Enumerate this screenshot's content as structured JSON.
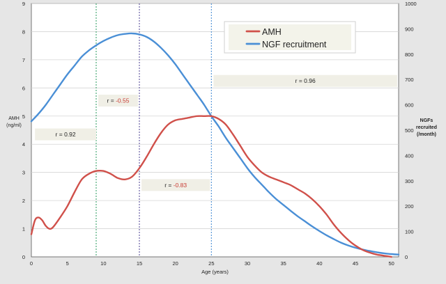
{
  "chart_data": {
    "type": "line",
    "xlabel": "Age (years)",
    "x_ticks": [
      0,
      5,
      10,
      15,
      20,
      25,
      30,
      35,
      40,
      45,
      50
    ],
    "xlim": [
      0,
      51
    ],
    "y_left": {
      "label_lines": [
        "AMH",
        "(ng/ml)"
      ],
      "lim": [
        0,
        9
      ],
      "ticks": [
        0,
        1,
        2,
        3,
        4,
        5,
        6,
        7,
        8,
        9
      ]
    },
    "y_right": {
      "label_lines": [
        "NGFs",
        "recruited",
        "(/month)"
      ],
      "lim": [
        0,
        1000
      ],
      "ticks": [
        0,
        100,
        200,
        300,
        400,
        500,
        600,
        700,
        800,
        900,
        1000
      ]
    },
    "grid": "horizontal",
    "legend": "top-right",
    "series": [
      {
        "name": "AMH",
        "axis": "left",
        "color": "#d0504a",
        "points": [
          [
            0,
            0.8
          ],
          [
            0.5,
            1.3
          ],
          [
            1,
            1.4
          ],
          [
            1.5,
            1.3
          ],
          [
            2,
            1.1
          ],
          [
            2.5,
            1.0
          ],
          [
            3,
            1.05
          ],
          [
            4,
            1.4
          ],
          [
            5,
            1.8
          ],
          [
            6,
            2.3
          ],
          [
            7,
            2.75
          ],
          [
            8,
            2.95
          ],
          [
            9,
            3.05
          ],
          [
            10,
            3.05
          ],
          [
            11,
            2.95
          ],
          [
            12,
            2.8
          ],
          [
            13,
            2.75
          ],
          [
            14,
            2.85
          ],
          [
            15,
            3.15
          ],
          [
            16,
            3.55
          ],
          [
            17,
            4.0
          ],
          [
            18,
            4.4
          ],
          [
            19,
            4.7
          ],
          [
            20,
            4.85
          ],
          [
            21,
            4.9
          ],
          [
            22,
            4.95
          ],
          [
            23,
            5.0
          ],
          [
            24,
            5.0
          ],
          [
            25,
            5.0
          ],
          [
            26,
            4.9
          ],
          [
            27,
            4.7
          ],
          [
            28,
            4.35
          ],
          [
            29,
            3.95
          ],
          [
            30,
            3.55
          ],
          [
            31,
            3.25
          ],
          [
            32,
            3.0
          ],
          [
            33,
            2.85
          ],
          [
            34,
            2.75
          ],
          [
            35,
            2.65
          ],
          [
            36,
            2.55
          ],
          [
            37,
            2.4
          ],
          [
            38,
            2.25
          ],
          [
            39,
            2.05
          ],
          [
            40,
            1.8
          ],
          [
            41,
            1.5
          ],
          [
            42,
            1.15
          ],
          [
            43,
            0.85
          ],
          [
            44,
            0.6
          ],
          [
            45,
            0.4
          ],
          [
            46,
            0.25
          ],
          [
            47,
            0.15
          ],
          [
            48,
            0.08
          ],
          [
            49,
            0.04
          ],
          [
            50,
            0.0
          ]
        ]
      },
      {
        "name": "NGF recruitment",
        "axis": "right",
        "color": "#4a8fd6",
        "points": [
          [
            0,
            535
          ],
          [
            1,
            565
          ],
          [
            2,
            600
          ],
          [
            3,
            640
          ],
          [
            4,
            680
          ],
          [
            5,
            720
          ],
          [
            6,
            755
          ],
          [
            7,
            790
          ],
          [
            8,
            815
          ],
          [
            9,
            835
          ],
          [
            10,
            852
          ],
          [
            11,
            865
          ],
          [
            12,
            875
          ],
          [
            13,
            880
          ],
          [
            14,
            882
          ],
          [
            15,
            878
          ],
          [
            16,
            868
          ],
          [
            17,
            850
          ],
          [
            18,
            825
          ],
          [
            19,
            795
          ],
          [
            20,
            760
          ],
          [
            21,
            720
          ],
          [
            22,
            680
          ],
          [
            23,
            640
          ],
          [
            24,
            600
          ],
          [
            25,
            555
          ],
          [
            26,
            515
          ],
          [
            27,
            470
          ],
          [
            28,
            430
          ],
          [
            29,
            390
          ],
          [
            30,
            350
          ],
          [
            31,
            315
          ],
          [
            32,
            285
          ],
          [
            33,
            255
          ],
          [
            34,
            228
          ],
          [
            35,
            205
          ],
          [
            36,
            182
          ],
          [
            37,
            160
          ],
          [
            38,
            140
          ],
          [
            39,
            120
          ],
          [
            40,
            102
          ],
          [
            41,
            85
          ],
          [
            42,
            70
          ],
          [
            43,
            56
          ],
          [
            44,
            45
          ],
          [
            45,
            36
          ],
          [
            46,
            29
          ],
          [
            47,
            23
          ],
          [
            48,
            18
          ],
          [
            49,
            14
          ],
          [
            50,
            11
          ],
          [
            51,
            9
          ]
        ]
      }
    ],
    "vlines": [
      {
        "x": 9,
        "color": "#3aa36a"
      },
      {
        "x": 15,
        "color": "#5a4f9a"
      },
      {
        "x": 25,
        "color": "#4a8fd6"
      }
    ],
    "annotations": [
      {
        "prefix": "r = ",
        "value": "0.92",
        "value_color": "#222222",
        "x": 0.5,
        "y": 4.35,
        "w": 8.5
      },
      {
        "prefix": "r = ",
        "value": "-0.55",
        "value_color": "#c83a32",
        "x": 9.3,
        "y": 5.55,
        "w": 5.5
      },
      {
        "prefix": "r = ",
        "value": "-0.83",
        "value_color": "#c83a32",
        "x": 15.3,
        "y": 2.55,
        "w": 9.5
      },
      {
        "prefix": "r = ",
        "value": "0.96",
        "value_color": "#222222",
        "x": 25.3,
        "y": 6.25,
        "w": 25.5
      }
    ]
  }
}
